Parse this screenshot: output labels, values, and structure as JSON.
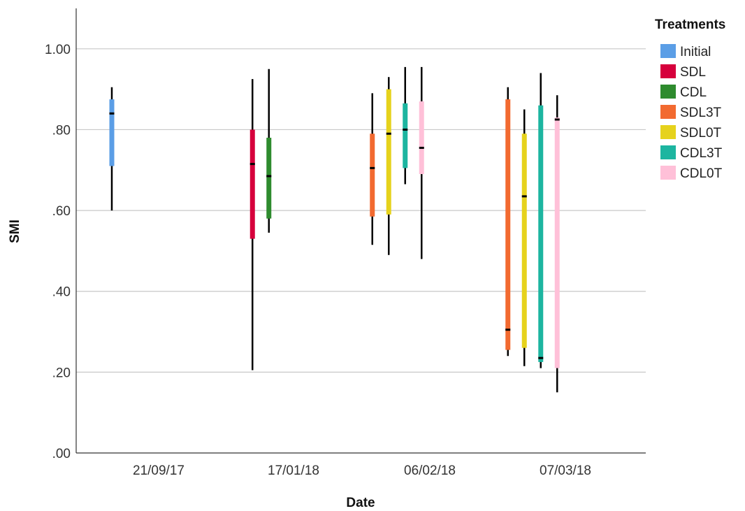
{
  "chart_data": {
    "type": "boxplot",
    "xlabel": "Date",
    "ylabel": "SMI",
    "ylim": [
      0,
      1.1
    ],
    "yticks": [
      {
        "value": 0.0,
        "label": ".00"
      },
      {
        "value": 0.2,
        "label": ".20"
      },
      {
        "value": 0.4,
        "label": ".40"
      },
      {
        "value": 0.6,
        "label": ".60"
      },
      {
        "value": 0.8,
        "label": ".80"
      },
      {
        "value": 1.0,
        "label": "1.00"
      }
    ],
    "grid": true,
    "legend_title": "Treatments",
    "legend_position": "top-right",
    "categories": [
      "21/09/17",
      "17/01/18",
      "06/02/18",
      "07/03/18"
    ],
    "series": [
      {
        "name": "Initial",
        "color": "#5b9ee6",
        "boxes": [
          {
            "category": "21/09/17",
            "min": 0.6,
            "q1": 0.71,
            "median": 0.84,
            "q3": 0.875,
            "max": 0.905
          }
        ]
      },
      {
        "name": "SDL",
        "color": "#d6003c",
        "boxes": [
          {
            "category": "17/01/18",
            "min": 0.205,
            "q1": 0.53,
            "median": 0.715,
            "q3": 0.8,
            "max": 0.925
          }
        ]
      },
      {
        "name": "CDL",
        "color": "#2e8b2e",
        "boxes": [
          {
            "category": "17/01/18",
            "min": 0.545,
            "q1": 0.58,
            "median": 0.685,
            "q3": 0.78,
            "max": 0.95
          }
        ]
      },
      {
        "name": "SDL3T",
        "color": "#f26a30",
        "boxes": [
          {
            "category": "06/02/18",
            "min": 0.515,
            "q1": 0.585,
            "median": 0.705,
            "q3": 0.79,
            "max": 0.89
          },
          {
            "category": "07/03/18",
            "min": 0.24,
            "q1": 0.255,
            "median": 0.305,
            "q3": 0.875,
            "max": 0.905
          }
        ]
      },
      {
        "name": "SDL0T",
        "color": "#e6d21c",
        "boxes": [
          {
            "category": "06/02/18",
            "min": 0.49,
            "q1": 0.59,
            "median": 0.79,
            "q3": 0.9,
            "max": 0.93
          },
          {
            "category": "07/03/18",
            "min": 0.215,
            "q1": 0.26,
            "median": 0.635,
            "q3": 0.79,
            "max": 0.85
          }
        ]
      },
      {
        "name": "CDL3T",
        "color": "#1db5a0",
        "boxes": [
          {
            "category": "06/02/18",
            "min": 0.665,
            "q1": 0.705,
            "median": 0.8,
            "q3": 0.865,
            "max": 0.955
          },
          {
            "category": "07/03/18",
            "min": 0.21,
            "q1": 0.225,
            "median": 0.235,
            "q3": 0.86,
            "max": 0.94
          }
        ]
      },
      {
        "name": "CDL0T",
        "color": "#ffc0d8",
        "boxes": [
          {
            "category": "06/02/18",
            "min": 0.48,
            "q1": 0.69,
            "median": 0.755,
            "q3": 0.87,
            "max": 0.955
          },
          {
            "category": "07/03/18",
            "min": 0.15,
            "q1": 0.21,
            "median": 0.825,
            "q3": 0.83,
            "max": 0.885
          }
        ]
      }
    ]
  }
}
